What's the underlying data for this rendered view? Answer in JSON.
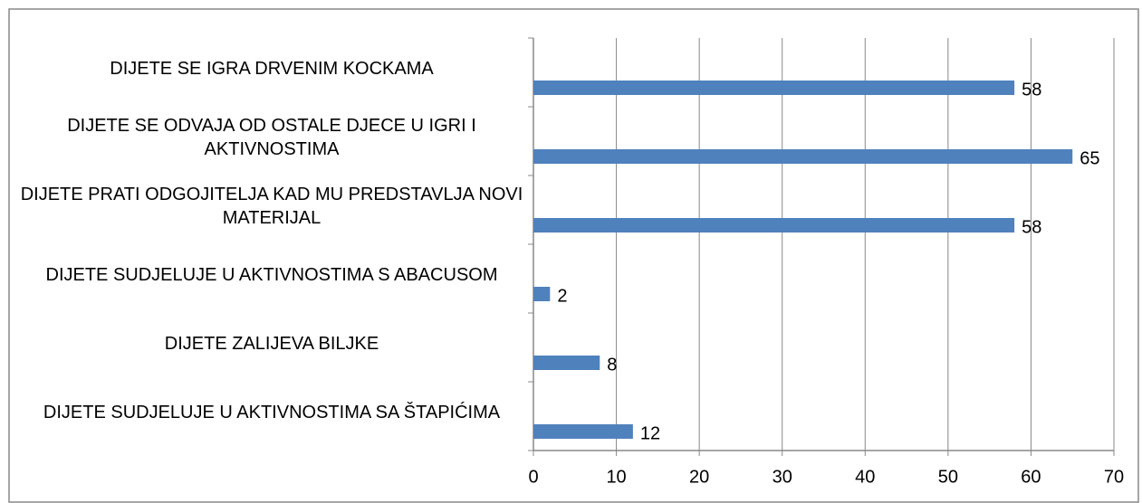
{
  "chart_data": {
    "type": "bar",
    "orientation": "horizontal",
    "categories": [
      "DIJETE SE IGRA DRVENIM KOCKAMA",
      "DIJETE SE ODVAJA OD OSTALE DJECE U IGRI I AKTIVNOSTIMA",
      "DIJETE PRATI ODGOJITELJA KAD MU PREDSTAVLJA NOVI MATERIJAL",
      "DIJETE SUDJELUJE U AKTIVNOSTIMA S ABACUSOM",
      "DIJETE ZALIJEVA BILJKE",
      "DIJETE SUDJELUJE U AKTIVNOSTIMA SA ŠTAPIĆIMA"
    ],
    "values": [
      58,
      65,
      58,
      2,
      8,
      12
    ],
    "color": "#4f81bd",
    "xlim": [
      0,
      70
    ],
    "xticks": [
      0,
      10,
      20,
      30,
      40,
      50,
      60,
      70
    ],
    "grid": true
  }
}
